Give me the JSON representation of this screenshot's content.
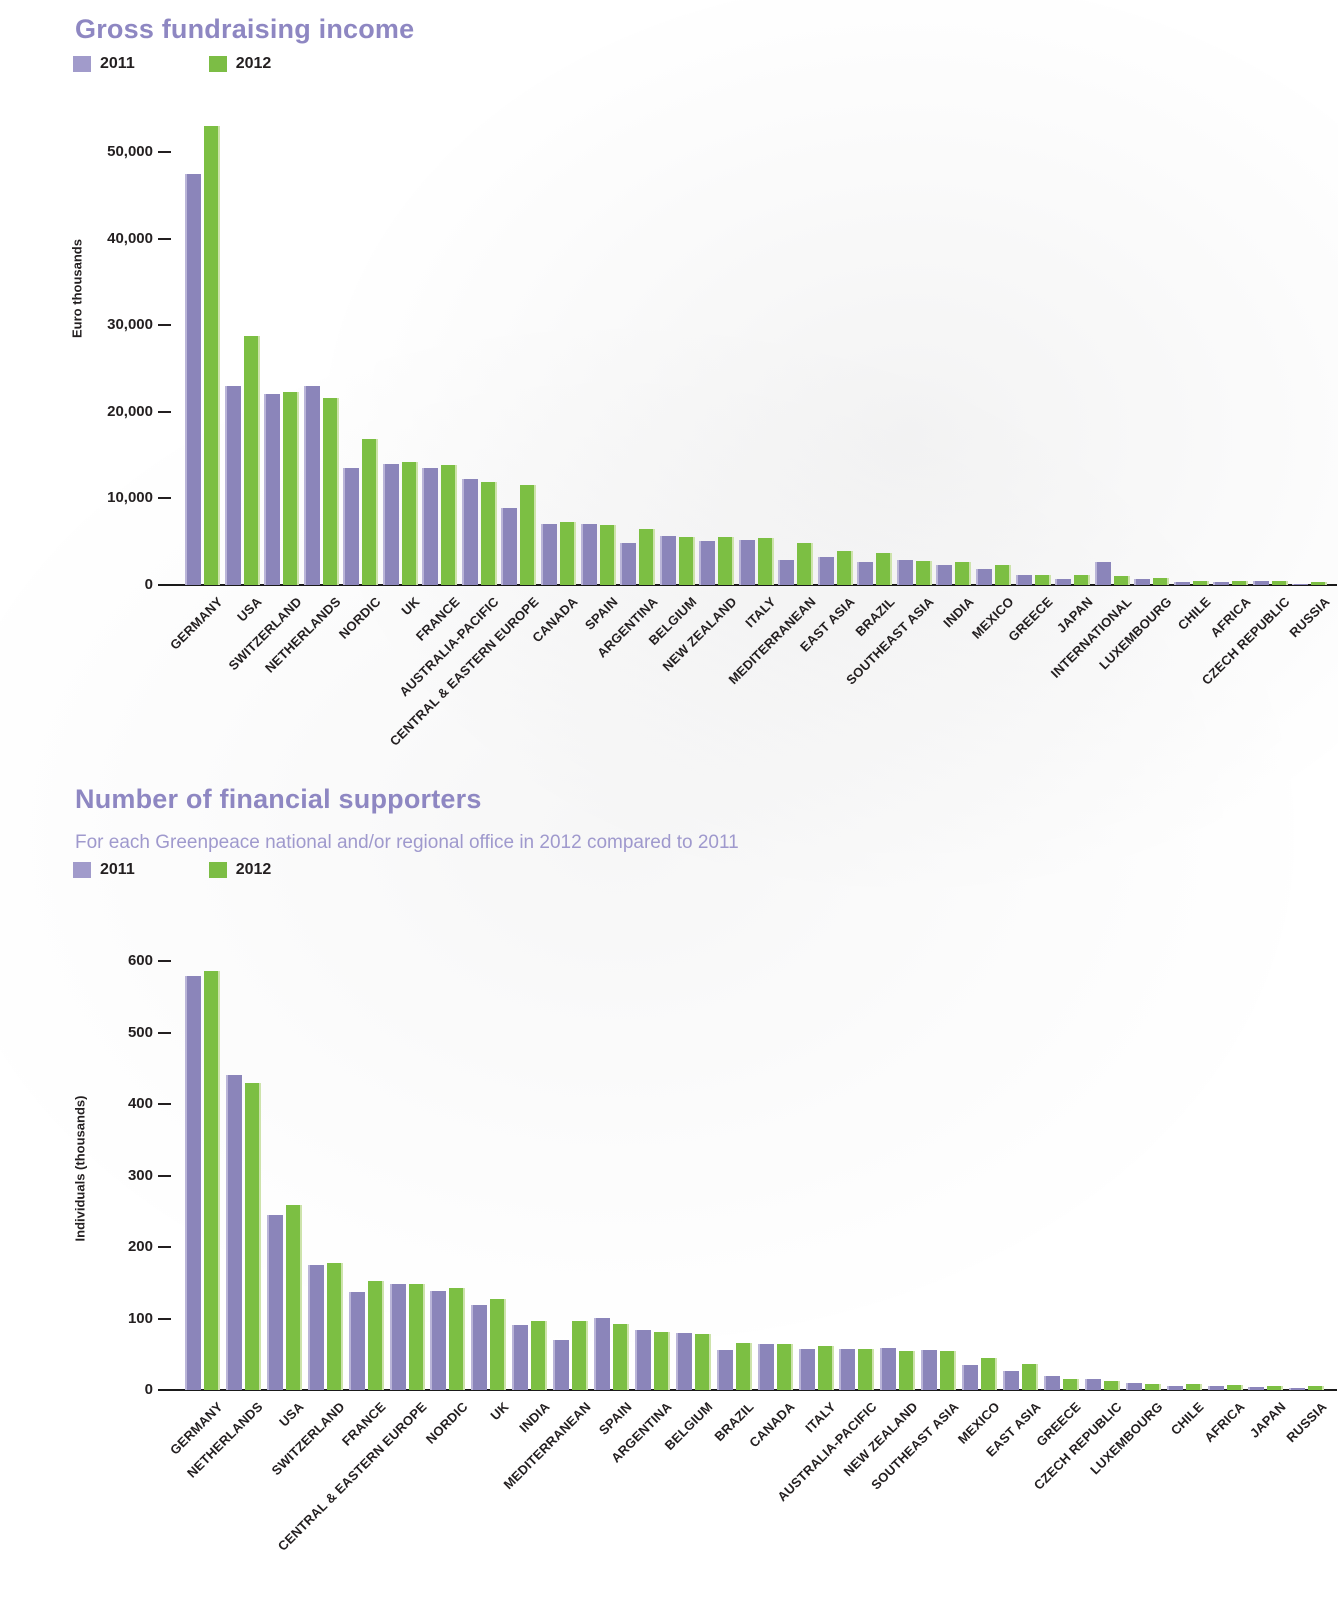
{
  "colors": {
    "bar_2011": "#8b85ba",
    "bar_2011_edge": "#bab5d8",
    "bar_2012": "#7cbf43",
    "bar_2012_edge": "#cde3ab",
    "legend_2011_swatch": "#a19bcb",
    "legend_2012_swatch": "#7cbd45",
    "title_text": "#8e87c2",
    "subtitle_text": "#9f99cd",
    "axis_text": "#231f20"
  },
  "charts": [
    {
      "title": "Gross fundraising income",
      "subtitle": "",
      "legend": [
        "2011",
        "2012"
      ],
      "chart_data": {
        "type": "bar",
        "title": "Gross fundraising income",
        "xlabel": "",
        "ylabel": "Euro thousands",
        "ylim": [
          0,
          56000
        ],
        "yticks": [
          0,
          10000,
          20000,
          30000,
          40000,
          50000
        ],
        "ytick_labels": [
          "0",
          "10,000",
          "20,000",
          "30,000",
          "40,000",
          "50,000"
        ],
        "grid": false,
        "legend_position": "top-left",
        "categories": [
          "GERMANY",
          "USA",
          "SWITZERLAND",
          "NETHERLANDS",
          "NORDIC",
          "UK",
          "FRANCE",
          "AUSTRALIA-PACIFIC",
          "CENTRAL & EASTERN EUROPE",
          "CANADA",
          "SPAIN",
          "ARGENTINA",
          "BELGIUM",
          "NEW ZEALAND",
          "ITALY",
          "MEDITERRANEAN",
          "EAST ASIA",
          "BRAZIL",
          "SOUTHEAST ASIA",
          "INDIA",
          "MEXICO",
          "GREECE",
          "JAPAN",
          "INTERNATIONAL",
          "LUXEMBOURG",
          "CHILE",
          "AFRICA",
          "CZECH REPUBLIC",
          "RUSSIA"
        ],
        "series": [
          {
            "name": "2011",
            "values": [
              47500,
              23000,
              22100,
              23000,
              13500,
              14000,
              13500,
              12200,
              8900,
              7000,
              7000,
              4900,
              5700,
              5100,
              5200,
              2900,
              3200,
              2700,
              2900,
              2300,
              1900,
              1200,
              700,
              2700,
              700,
              300,
              400,
              500,
              150
            ]
          },
          {
            "name": "2012",
            "values": [
              53000,
              28800,
              22300,
              21600,
              16900,
              14200,
              13900,
              11900,
              11600,
              7300,
              6900,
              6500,
              5600,
              5600,
              5400,
              4900,
              3900,
              3700,
              2800,
              2600,
              2300,
              1100,
              1100,
              1000,
              800,
              500,
              500,
              480,
              300
            ]
          }
        ]
      }
    },
    {
      "title": "Number of financial supporters",
      "subtitle": "For each Greenpeace national and/or regional office in 2012 compared to 2011",
      "legend": [
        "2011",
        "2012"
      ],
      "chart_data": {
        "type": "bar",
        "title": "Number of financial supporters",
        "xlabel": "",
        "ylabel": "Individuals (thousands)",
        "ylim": [
          0,
          630
        ],
        "yticks": [
          0,
          100,
          200,
          300,
          400,
          500,
          600
        ],
        "ytick_labels": [
          "0",
          "100",
          "200",
          "300",
          "400",
          "500",
          "600"
        ],
        "grid": false,
        "legend_position": "top-left",
        "categories": [
          "GERMANY",
          "NETHERLANDS",
          "USA",
          "SWITZERLAND",
          "FRANCE",
          "CENTRAL & EASTERN EUROPE",
          "NORDIC",
          "UK",
          "INDIA",
          "MEDITERRANEAN",
          "SPAIN",
          "ARGENTINA",
          "BELGIUM",
          "BRAZIL",
          "CANADA",
          "ITALY",
          "AUSTRALIA-PACIFIC",
          "NEW ZEALAND",
          "SOUTHEAST ASIA",
          "MEXICO",
          "EAST ASIA",
          "GREECE",
          "CZECH REPUBLIC",
          "LUXEMBOURG",
          "CHILE",
          "AFRICA",
          "JAPAN",
          "RUSSIA"
        ],
        "series": [
          {
            "name": "2011",
            "values": [
              580,
              441,
              245,
              175,
              137,
              149,
              138,
              119,
              91,
              70,
              101,
              84,
              80,
              56,
              64,
              57,
              58,
              59,
              56,
              35,
              27,
              19,
              16,
              10,
              6,
              6,
              4,
              3
            ]
          },
          {
            "name": "2012",
            "values": [
              586,
              430,
              259,
              178,
              152,
              148,
              143,
              128,
              97,
              96,
              93,
              81,
              78,
              66,
              64,
              61,
              58,
              55,
              54,
              45,
              36,
              16,
              13,
              8,
              9,
              7,
              6,
              5
            ]
          }
        ]
      }
    }
  ]
}
